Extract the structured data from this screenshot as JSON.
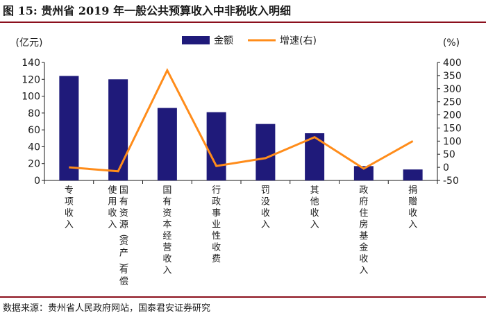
{
  "header": {
    "title": "图 15:  贵州省 2019 年一般公共预算收入中非税收入明细"
  },
  "footer": {
    "source": "数据来源：贵州省人民政府网站，国泰君安证券研究"
  },
  "colors": {
    "bar": "#1f1a7a",
    "line": "#ff8c1a",
    "rule": "#8b0f1c",
    "axis": "#1a1a1a"
  },
  "chart_data": {
    "type": "bar",
    "categories": [
      "专项收入",
      "国有资源(资产)有偿使用收入",
      "国有资本经营收入",
      "行政事业性收费",
      "罚没收入",
      "其他收入",
      "政府住房基金收入",
      "捐赠收入"
    ],
    "category_label_columns": [
      [
        "专项收入"
      ],
      [
        "国有资源(资产)有偿",
        "使用收入"
      ],
      [
        "国有资本经营收入"
      ],
      [
        "行政事业性收费"
      ],
      [
        "罚没收入"
      ],
      [
        "其他收入"
      ],
      [
        "政府住房基金收入"
      ],
      [
        "捐赠收入"
      ]
    ],
    "series": [
      {
        "name": "金额",
        "type": "bar",
        "axis": "left",
        "values": [
          124,
          120,
          86,
          81,
          67,
          56,
          17,
          13
        ]
      },
      {
        "name": "增速(右)",
        "type": "line",
        "axis": "right",
        "values": [
          0,
          -15,
          370,
          5,
          35,
          115,
          -5,
          100
        ]
      }
    ],
    "left_axis": {
      "label": "(亿元)",
      "ylim": [
        0,
        140
      ],
      "ticks": [
        0,
        20,
        40,
        60,
        80,
        100,
        120,
        140
      ]
    },
    "right_axis": {
      "label": "(%)",
      "ylim": [
        -50,
        400
      ],
      "ticks": [
        -50,
        0,
        50,
        100,
        150,
        200,
        250,
        300,
        350,
        400
      ]
    },
    "legend_position": "top-center",
    "grid": false
  }
}
